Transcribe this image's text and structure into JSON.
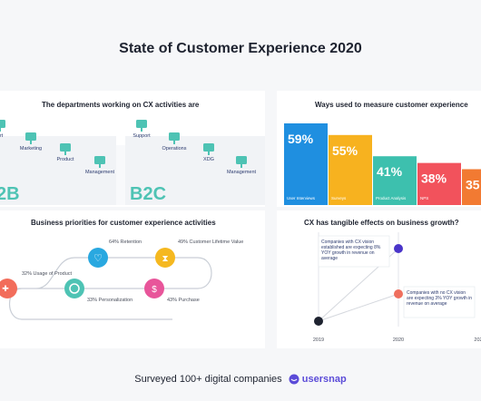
{
  "page_title": "State of Customer Experience 2020",
  "footer": {
    "text": "Surveyed 100+ digital companies",
    "brand": "usersnap"
  },
  "colors": {
    "teal": "#4ec3b4",
    "dark_blue": "#2b3a6e",
    "accent_purple": "#5b4bd8"
  },
  "panels": {
    "departments": {
      "title": "The departments working on CX activities are",
      "groups": [
        {
          "label": "2B",
          "items": [
            "art",
            "Marketing",
            "Product",
            "Management"
          ]
        },
        {
          "label": "B2C",
          "items": [
            "Support",
            "Operations",
            "XDG",
            "Management"
          ]
        }
      ]
    },
    "priorities": {
      "title": "Business priorities for customer experience activities",
      "items": [
        {
          "label": "32% Usage of Product",
          "icon": "usage-icon",
          "color": "#f26d5b"
        },
        {
          "label": "64% Retention",
          "icon": "heart-icon",
          "color": "#29a8e0"
        },
        {
          "label": "33% Personalization",
          "icon": "personalization-icon",
          "color": "#4ec3b4"
        },
        {
          "label": "49% Customer Lifetime Value",
          "icon": "hourglass-icon",
          "color": "#f5b820"
        },
        {
          "label": "43% Purchase",
          "icon": "dollar-icon",
          "color": "#e8559a"
        }
      ]
    },
    "measure": {
      "title": "Ways used to measure customer experience"
    },
    "effects": {
      "title": "CX has tangible effects on business growth?"
    }
  },
  "chart_data": [
    {
      "type": "bar",
      "title": "Ways used to measure customer experience",
      "categories": [
        "User Interviews",
        "Surveys",
        "Product Analysis",
        "NPS",
        ""
      ],
      "values": [
        59,
        55,
        41,
        38,
        35
      ],
      "value_labels": [
        "59%",
        "55%",
        "41%",
        "38%",
        "35"
      ],
      "colors": [
        "#1f8fe0",
        "#f7b21f",
        "#3dc0ae",
        "#f2525c",
        "#f27a32"
      ],
      "ylim": [
        0,
        100
      ]
    },
    {
      "type": "scatter",
      "title": "CX has tangible effects on business growth?",
      "x_ticks": [
        "2019",
        "2020",
        "202"
      ],
      "series": [
        {
          "x": [
            "2019",
            "2020"
          ],
          "y": [
            0,
            8
          ],
          "color": "#4a35c9",
          "annotation": "Companies with CX vision established are expecting 8% YOY growth in revenue on average"
        },
        {
          "x": [
            "2019",
            "2020"
          ],
          "y": [
            0,
            3
          ],
          "color": "#ef6f5e",
          "annotation": "Companies with no CX vision are expecting 3% YOY growth in revenue on average"
        }
      ],
      "ylim": [
        0,
        10
      ]
    }
  ]
}
